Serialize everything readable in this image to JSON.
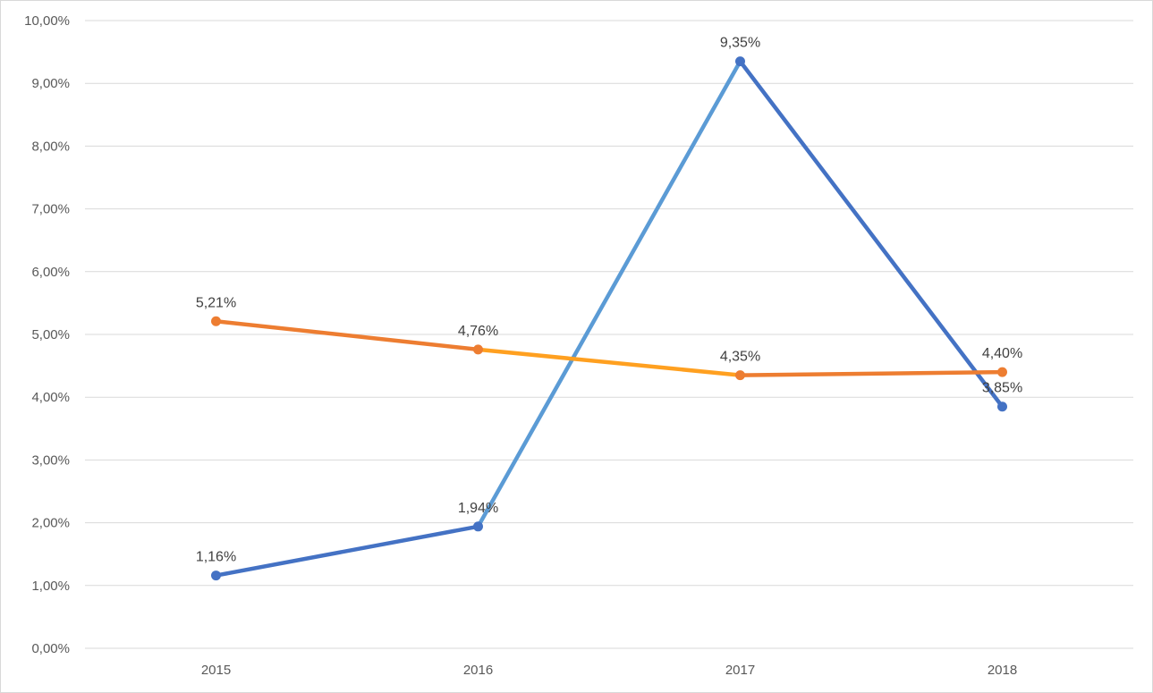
{
  "chart_data": {
    "type": "line",
    "categories": [
      "2015",
      "2016",
      "2017",
      "2018"
    ],
    "ylim": [
      0,
      0.1
    ],
    "yticks": [
      "0,00%",
      "1,00%",
      "2,00%",
      "3,00%",
      "4,00%",
      "5,00%",
      "6,00%",
      "7,00%",
      "8,00%",
      "9,00%",
      "10,00%"
    ],
    "grid": true,
    "legend": "none",
    "series": [
      {
        "values": [
          0.0116,
          0.0194,
          0.0935,
          0.0385
        ],
        "labels": [
          "1,16%",
          "1,94%",
          "9,35%",
          "3,85%"
        ],
        "color": "#4472c4",
        "segment_colors": [
          "#4472c4",
          "#5b9bd5",
          "#4472c4"
        ],
        "label_position": "above"
      },
      {
        "values": [
          0.0521,
          0.0476,
          0.0435,
          0.044
        ],
        "labels": [
          "5,21%",
          "4,76%",
          "4,35%",
          "4,40%"
        ],
        "color": "#ed7d31",
        "segment_colors": [
          "#ed7d31",
          "#ffa020",
          "#ed7d31"
        ],
        "label_position": "above"
      }
    ]
  }
}
